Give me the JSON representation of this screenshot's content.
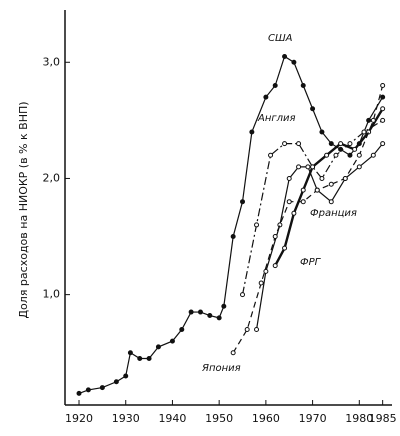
{
  "chart_data": {
    "type": "line",
    "y_label": "Доля расходов на НИОКР (в % к ВНП)",
    "xlim": [
      1917,
      1987
    ],
    "xticks": [
      1920,
      1930,
      1940,
      1950,
      1960,
      1970,
      1980,
      1985
    ],
    "ylim": [
      0.05,
      3.45
    ],
    "yticks": [
      {
        "value": 1,
        "label": "1,0"
      },
      {
        "value": 2,
        "label": "2,0"
      },
      {
        "value": 3,
        "label": "3,0"
      }
    ],
    "series": [
      {
        "name": "США",
        "color": "#111111",
        "dash": "solid",
        "x": [
          1920,
          1922,
          1925,
          1928,
          1930,
          1931,
          1933,
          1935,
          1937,
          1940,
          1942,
          1944,
          1946,
          1948,
          1950,
          1951,
          1953,
          1955,
          1957,
          1960,
          1962,
          1964,
          1966,
          1968,
          1970,
          1972,
          1974,
          1976,
          1978,
          1980,
          1982,
          1985
        ],
        "values": [
          0.15,
          0.18,
          0.2,
          0.25,
          0.3,
          0.5,
          0.45,
          0.45,
          0.55,
          0.6,
          0.7,
          0.85,
          0.85,
          0.82,
          0.8,
          0.9,
          1.5,
          1.8,
          2.4,
          2.7,
          2.8,
          3.05,
          3.0,
          2.8,
          2.6,
          2.4,
          2.3,
          2.25,
          2.2,
          2.3,
          2.5,
          2.7
        ]
      },
      {
        "name": "Англия",
        "color": "#111111",
        "dash": "dashdot",
        "x": [
          1955,
          1958,
          1961,
          1964,
          1967,
          1970,
          1972,
          1975,
          1978,
          1981,
          1985
        ],
        "values": [
          1.0,
          1.6,
          2.2,
          2.3,
          2.3,
          2.1,
          2.0,
          2.2,
          2.3,
          2.4,
          2.5
        ]
      },
      {
        "name": "Франция",
        "color": "#111111",
        "dash": "solid",
        "x": [
          1958,
          1960,
          1963,
          1965,
          1967,
          1969,
          1971,
          1974,
          1977,
          1980,
          1983,
          1985
        ],
        "values": [
          0.7,
          1.2,
          1.6,
          2.0,
          2.1,
          2.1,
          1.9,
          1.8,
          2.0,
          2.1,
          2.2,
          2.3
        ]
      },
      {
        "name": "ФРГ",
        "color": "#111111",
        "dash": "bold",
        "x": [
          1962,
          1964,
          1966,
          1968,
          1970,
          1973,
          1976,
          1979,
          1982,
          1985
        ],
        "values": [
          1.25,
          1.4,
          1.7,
          1.9,
          2.1,
          2.2,
          2.3,
          2.25,
          2.4,
          2.6
        ]
      },
      {
        "name": "Япония",
        "color": "#111111",
        "dash": "dashed",
        "x": [
          1953,
          1956,
          1959,
          1962,
          1965,
          1968,
          1971,
          1974,
          1977,
          1980,
          1983,
          1985
        ],
        "values": [
          0.5,
          0.7,
          1.1,
          1.5,
          1.8,
          1.8,
          1.9,
          1.95,
          2.0,
          2.2,
          2.5,
          2.8
        ]
      }
    ]
  }
}
